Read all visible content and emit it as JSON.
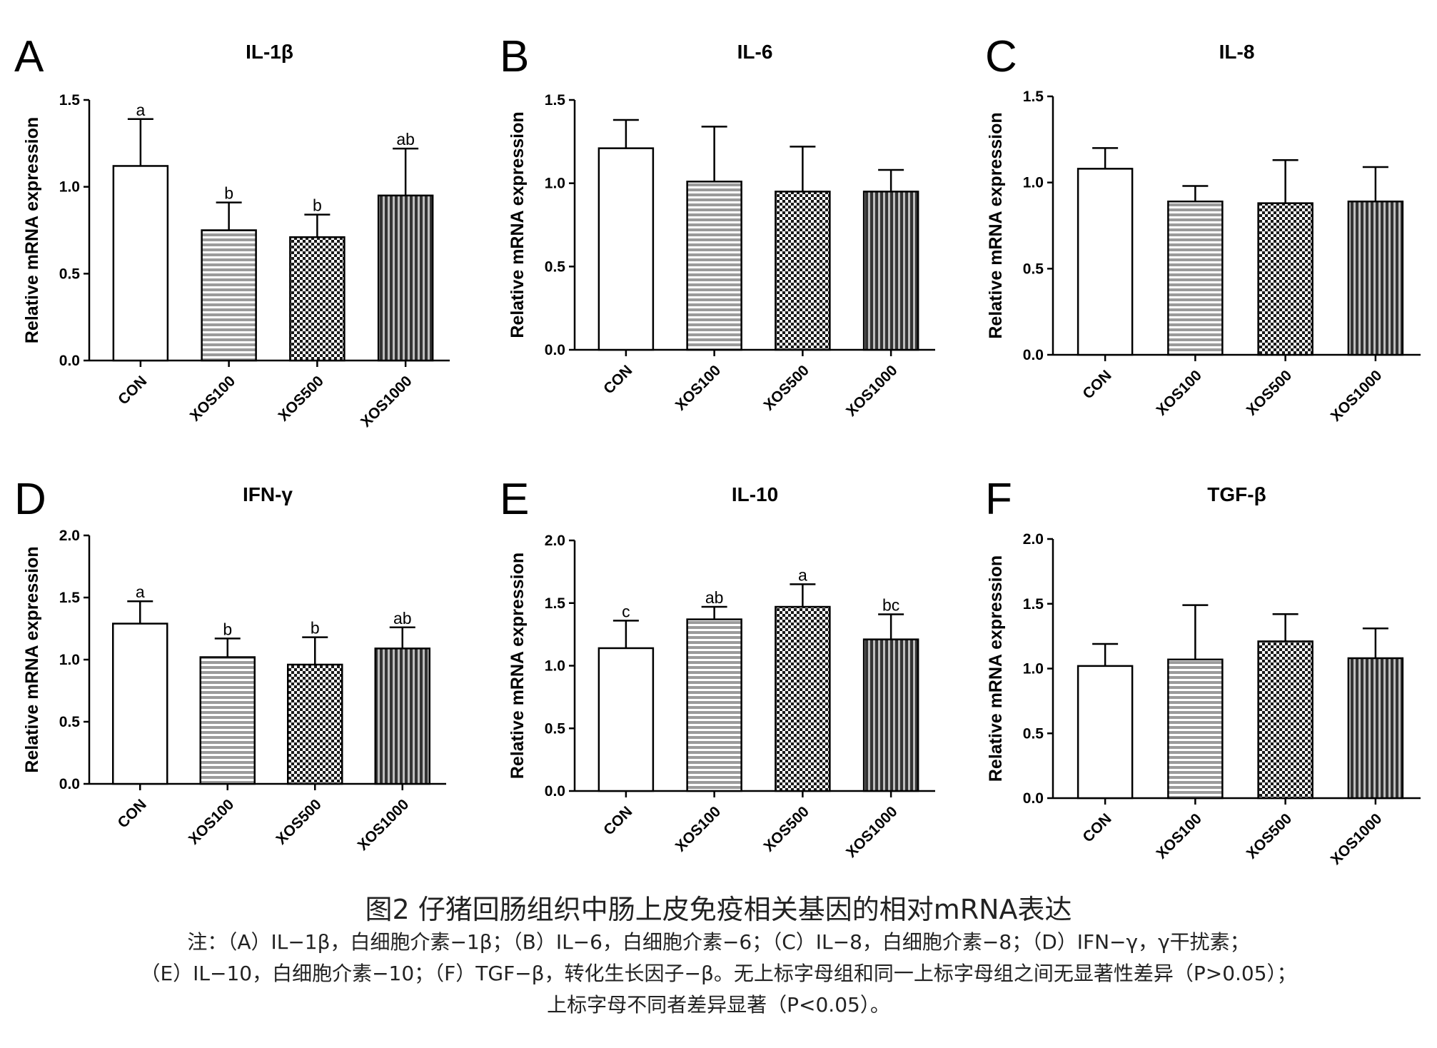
{
  "chart_data": [
    {
      "type": "bar",
      "panel": "A",
      "title": "IL-1β",
      "ylabel": "Relative mRNA expression",
      "ylim": [
        0,
        1.5
      ],
      "yticks": [
        "0.0",
        "0.5",
        "1.0",
        "1.5"
      ],
      "categories": [
        "CON",
        "XOS100",
        "XOS500",
        "XOS1000"
      ],
      "values": [
        1.12,
        0.75,
        0.71,
        0.95
      ],
      "errors": [
        0.27,
        0.16,
        0.13,
        0.27
      ],
      "labels": [
        "a",
        "b",
        "b",
        "ab"
      ]
    },
    {
      "type": "bar",
      "panel": "B",
      "title": "IL-6",
      "ylabel": "Relative mRNA expression",
      "ylim": [
        0,
        1.5
      ],
      "yticks": [
        "0.0",
        "0.5",
        "1.0",
        "1.5"
      ],
      "categories": [
        "CON",
        "XOS100",
        "XOS500",
        "XOS1000"
      ],
      "values": [
        1.21,
        1.01,
        0.95,
        0.95
      ],
      "errors": [
        0.17,
        0.33,
        0.27,
        0.13
      ],
      "labels": [
        "",
        "",
        "",
        ""
      ]
    },
    {
      "type": "bar",
      "panel": "C",
      "title": "IL-8",
      "ylabel": "Relative mRNA expression",
      "ylim": [
        0,
        1.5
      ],
      "yticks": [
        "0.0",
        "0.5",
        "1.0",
        "1.5"
      ],
      "categories": [
        "CON",
        "XOS100",
        "XOS500",
        "XOS1000"
      ],
      "values": [
        1.08,
        0.89,
        0.88,
        0.89
      ],
      "errors": [
        0.12,
        0.09,
        0.25,
        0.2
      ],
      "labels": [
        "",
        "",
        "",
        ""
      ]
    },
    {
      "type": "bar",
      "panel": "D",
      "title": "IFN-γ",
      "ylabel": "Relative mRNA expression",
      "ylim": [
        0,
        2.0
      ],
      "yticks": [
        "0.0",
        "0.5",
        "1.0",
        "1.5",
        "2.0"
      ],
      "categories": [
        "CON",
        "XOS100",
        "XOS500",
        "XOS1000"
      ],
      "values": [
        1.29,
        1.02,
        0.96,
        1.09
      ],
      "errors": [
        0.18,
        0.15,
        0.22,
        0.17
      ],
      "labels": [
        "a",
        "b",
        "b",
        "ab"
      ]
    },
    {
      "type": "bar",
      "panel": "E",
      "title": "IL-10",
      "ylabel": "Relative mRNA expression",
      "ylim": [
        0,
        2.0
      ],
      "yticks": [
        "0.0",
        "0.5",
        "1.0",
        "1.5",
        "2.0"
      ],
      "categories": [
        "CON",
        "XOS100",
        "XOS500",
        "XOS1000"
      ],
      "values": [
        1.14,
        1.37,
        1.47,
        1.21
      ],
      "errors": [
        0.22,
        0.1,
        0.18,
        0.2
      ],
      "labels": [
        "c",
        "ab",
        "a",
        "bc"
      ]
    },
    {
      "type": "bar",
      "panel": "F",
      "title": "TGF-β",
      "ylabel": "Relative mRNA expression",
      "ylim": [
        0,
        2.0
      ],
      "yticks": [
        "0.0",
        "0.5",
        "1.0",
        "1.5",
        "2.0"
      ],
      "categories": [
        "CON",
        "XOS100",
        "XOS500",
        "XOS1000"
      ],
      "values": [
        1.02,
        1.07,
        1.21,
        1.08
      ],
      "errors": [
        0.17,
        0.42,
        0.21,
        0.23
      ],
      "labels": [
        "",
        "",
        "",
        ""
      ]
    }
  ],
  "caption": {
    "title": "图2 仔猪回肠组织中肠上皮免疫相关基因的相对mRNA表达",
    "notes": [
      "注：（A）IL−1β，白细胞介素−1β；（B）IL−6，白细胞介素−6；（C）IL−8，白细胞介素−8；（D）IFN−γ，γ干扰素；",
      "（E）IL−10，白细胞介素−10；（F）TGF−β，转化生长因子−β。无上标字母组和同一上标字母组之间无显著性差异（P>0.05）；",
      "上标字母不同者差异显著（P<0.05）。"
    ]
  },
  "colors": {
    "con_fill": "#ffffff",
    "bar_stroke": "#000000",
    "stripe_fill": "#9b9b9b",
    "check_dark": "#1a1a1a",
    "vstripe_dark": "#333333"
  }
}
